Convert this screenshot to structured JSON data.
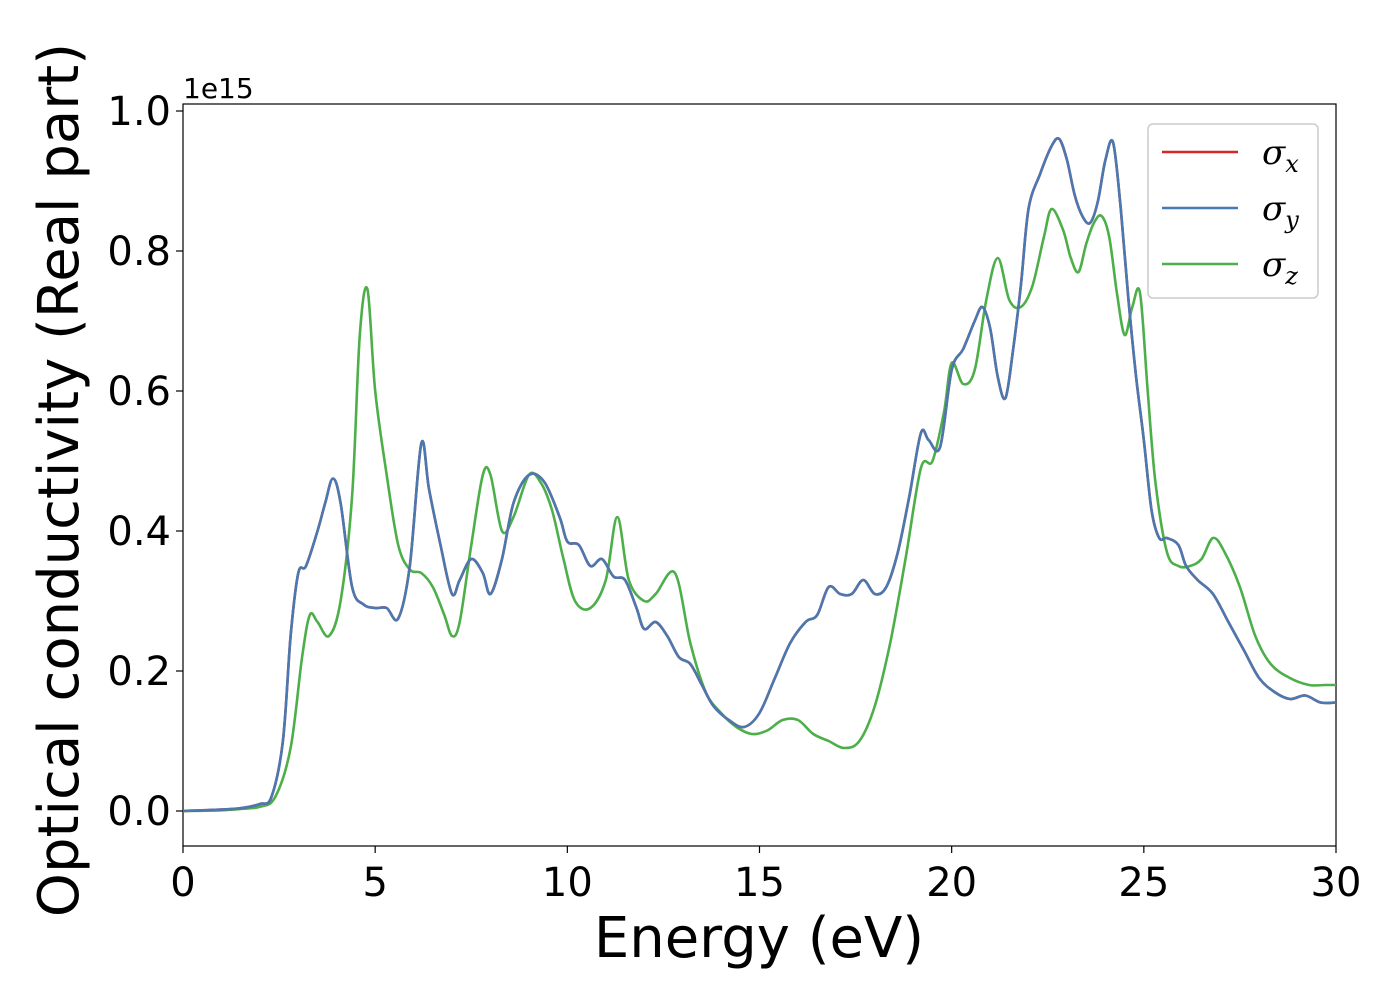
{
  "chart_data": {
    "type": "line",
    "xlabel": "Energy (eV)",
    "ylabel": "Optical conductivity (Real part)",
    "y_offset_text": "1e15",
    "xlim": [
      0,
      30
    ],
    "ylim": [
      -0.05,
      1.01
    ],
    "x_ticks": [
      0,
      5,
      10,
      15,
      20,
      25,
      30
    ],
    "x_tick_labels": [
      "0",
      "5",
      "10",
      "15",
      "20",
      "25",
      "30"
    ],
    "y_ticks": [
      0.0,
      0.2,
      0.4,
      0.6,
      0.8,
      1.0
    ],
    "y_tick_labels": [
      "0.0",
      "0.2",
      "0.4",
      "0.6",
      "0.8",
      "1.0"
    ],
    "grid": false,
    "legend_position": "top-right",
    "series": [
      {
        "name": "σx",
        "symbol": "σ",
        "subscript": "x",
        "color": "#d62728",
        "x": [
          0,
          1,
          1.5,
          2,
          2.3,
          2.6,
          2.8,
          3.0,
          3.2,
          3.5,
          3.7,
          3.9,
          4.1,
          4.4,
          4.7,
          5.0,
          5.3,
          5.6,
          5.9,
          6.2,
          6.4,
          6.7,
          7.0,
          7.2,
          7.5,
          7.8,
          8.0,
          8.3,
          8.6,
          9.0,
          9.4,
          9.8,
          10.0,
          10.3,
          10.6,
          10.9,
          11.2,
          11.5,
          11.8,
          12.0,
          12.3,
          12.6,
          12.9,
          13.2,
          13.5,
          13.8,
          14.2,
          14.6,
          15.0,
          15.4,
          15.8,
          16.2,
          16.5,
          16.8,
          17.1,
          17.4,
          17.7,
          18.0,
          18.3,
          18.6,
          18.9,
          19.2,
          19.4,
          19.7,
          20.0,
          20.3,
          20.6,
          20.8,
          21.0,
          21.2,
          21.4,
          21.6,
          21.8,
          22.0,
          22.3,
          22.6,
          22.8,
          23.0,
          23.2,
          23.4,
          23.6,
          23.8,
          24.0,
          24.2,
          24.4,
          24.6,
          24.8,
          25.0,
          25.2,
          25.4,
          25.6,
          25.9,
          26.1,
          26.4,
          26.8,
          27.2,
          27.6,
          28.0,
          28.4,
          28.8,
          29.2,
          29.6,
          30.0
        ],
        "y": [
          0,
          0.002,
          0.004,
          0.01,
          0.02,
          0.1,
          0.25,
          0.34,
          0.35,
          0.4,
          0.44,
          0.475,
          0.44,
          0.32,
          0.295,
          0.29,
          0.29,
          0.275,
          0.35,
          0.525,
          0.46,
          0.38,
          0.31,
          0.33,
          0.36,
          0.34,
          0.31,
          0.36,
          0.44,
          0.48,
          0.47,
          0.42,
          0.385,
          0.38,
          0.35,
          0.36,
          0.335,
          0.33,
          0.29,
          0.26,
          0.27,
          0.25,
          0.22,
          0.21,
          0.18,
          0.15,
          0.13,
          0.12,
          0.14,
          0.19,
          0.24,
          0.27,
          0.28,
          0.32,
          0.31,
          0.31,
          0.33,
          0.31,
          0.32,
          0.37,
          0.45,
          0.54,
          0.53,
          0.52,
          0.63,
          0.66,
          0.7,
          0.72,
          0.69,
          0.62,
          0.59,
          0.66,
          0.75,
          0.86,
          0.91,
          0.95,
          0.96,
          0.93,
          0.88,
          0.85,
          0.84,
          0.87,
          0.93,
          0.955,
          0.86,
          0.73,
          0.62,
          0.53,
          0.43,
          0.39,
          0.39,
          0.38,
          0.35,
          0.33,
          0.31,
          0.27,
          0.23,
          0.19,
          0.17,
          0.16,
          0.165,
          0.155,
          0.155
        ]
      },
      {
        "name": "σy",
        "symbol": "σ",
        "subscript": "y",
        "color": "#4a78b0",
        "x": [
          0,
          1,
          1.5,
          2,
          2.3,
          2.6,
          2.8,
          3.0,
          3.2,
          3.5,
          3.7,
          3.9,
          4.1,
          4.4,
          4.7,
          5.0,
          5.3,
          5.6,
          5.9,
          6.2,
          6.4,
          6.7,
          7.0,
          7.2,
          7.5,
          7.8,
          8.0,
          8.3,
          8.6,
          9.0,
          9.4,
          9.8,
          10.0,
          10.3,
          10.6,
          10.9,
          11.2,
          11.5,
          11.8,
          12.0,
          12.3,
          12.6,
          12.9,
          13.2,
          13.5,
          13.8,
          14.2,
          14.6,
          15.0,
          15.4,
          15.8,
          16.2,
          16.5,
          16.8,
          17.1,
          17.4,
          17.7,
          18.0,
          18.3,
          18.6,
          18.9,
          19.2,
          19.4,
          19.7,
          20.0,
          20.3,
          20.6,
          20.8,
          21.0,
          21.2,
          21.4,
          21.6,
          21.8,
          22.0,
          22.3,
          22.6,
          22.8,
          23.0,
          23.2,
          23.4,
          23.6,
          23.8,
          24.0,
          24.2,
          24.4,
          24.6,
          24.8,
          25.0,
          25.2,
          25.4,
          25.6,
          25.9,
          26.1,
          26.4,
          26.8,
          27.2,
          27.6,
          28.0,
          28.4,
          28.8,
          29.2,
          29.6,
          30.0
        ],
        "y": [
          0,
          0.002,
          0.004,
          0.01,
          0.02,
          0.1,
          0.25,
          0.34,
          0.35,
          0.4,
          0.44,
          0.475,
          0.44,
          0.32,
          0.295,
          0.29,
          0.29,
          0.275,
          0.35,
          0.525,
          0.46,
          0.38,
          0.31,
          0.33,
          0.36,
          0.34,
          0.31,
          0.36,
          0.44,
          0.48,
          0.47,
          0.42,
          0.385,
          0.38,
          0.35,
          0.36,
          0.335,
          0.33,
          0.29,
          0.26,
          0.27,
          0.25,
          0.22,
          0.21,
          0.18,
          0.15,
          0.13,
          0.12,
          0.14,
          0.19,
          0.24,
          0.27,
          0.28,
          0.32,
          0.31,
          0.31,
          0.33,
          0.31,
          0.32,
          0.37,
          0.45,
          0.54,
          0.53,
          0.52,
          0.63,
          0.66,
          0.7,
          0.72,
          0.69,
          0.62,
          0.59,
          0.66,
          0.75,
          0.86,
          0.91,
          0.95,
          0.96,
          0.93,
          0.88,
          0.85,
          0.84,
          0.87,
          0.93,
          0.955,
          0.86,
          0.73,
          0.62,
          0.53,
          0.43,
          0.39,
          0.39,
          0.38,
          0.35,
          0.33,
          0.31,
          0.27,
          0.23,
          0.19,
          0.17,
          0.16,
          0.165,
          0.155,
          0.155
        ]
      },
      {
        "name": "σz",
        "symbol": "σ",
        "subscript": "z",
        "color": "#4daf4a",
        "x": [
          0,
          1,
          1.5,
          2,
          2.4,
          2.8,
          3.1,
          3.3,
          3.5,
          3.8,
          4.1,
          4.4,
          4.6,
          4.8,
          5.0,
          5.3,
          5.6,
          5.9,
          6.2,
          6.5,
          6.8,
          7.0,
          7.2,
          7.5,
          7.8,
          8.0,
          8.3,
          8.6,
          9.0,
          9.3,
          9.6,
          9.9,
          10.2,
          10.6,
          11.0,
          11.3,
          11.6,
          12.0,
          12.3,
          12.8,
          13.2,
          13.6,
          14.0,
          14.4,
          14.8,
          15.2,
          15.6,
          16.0,
          16.4,
          16.8,
          17.2,
          17.6,
          18.0,
          18.4,
          18.8,
          19.2,
          19.5,
          19.8,
          20.0,
          20.3,
          20.6,
          20.9,
          21.2,
          21.5,
          21.8,
          22.1,
          22.4,
          22.6,
          22.9,
          23.1,
          23.3,
          23.5,
          23.7,
          23.9,
          24.1,
          24.3,
          24.5,
          24.7,
          24.9,
          25.1,
          25.3,
          25.6,
          25.9,
          26.2,
          26.5,
          26.8,
          27.1,
          27.5,
          27.9,
          28.3,
          28.8,
          29.3,
          29.7,
          30.0
        ],
        "y": [
          0,
          0.001,
          0.003,
          0.006,
          0.02,
          0.09,
          0.22,
          0.28,
          0.27,
          0.25,
          0.3,
          0.45,
          0.68,
          0.745,
          0.6,
          0.48,
          0.38,
          0.345,
          0.34,
          0.32,
          0.28,
          0.25,
          0.27,
          0.38,
          0.48,
          0.48,
          0.4,
          0.42,
          0.48,
          0.47,
          0.43,
          0.36,
          0.3,
          0.29,
          0.33,
          0.42,
          0.33,
          0.3,
          0.31,
          0.34,
          0.24,
          0.17,
          0.14,
          0.12,
          0.11,
          0.115,
          0.13,
          0.13,
          0.11,
          0.1,
          0.09,
          0.1,
          0.15,
          0.24,
          0.36,
          0.49,
          0.5,
          0.57,
          0.64,
          0.61,
          0.63,
          0.73,
          0.79,
          0.73,
          0.72,
          0.75,
          0.82,
          0.86,
          0.83,
          0.79,
          0.77,
          0.81,
          0.84,
          0.85,
          0.82,
          0.74,
          0.68,
          0.72,
          0.74,
          0.6,
          0.47,
          0.37,
          0.35,
          0.35,
          0.36,
          0.39,
          0.37,
          0.32,
          0.25,
          0.21,
          0.19,
          0.18,
          0.18,
          0.18
        ]
      }
    ]
  }
}
